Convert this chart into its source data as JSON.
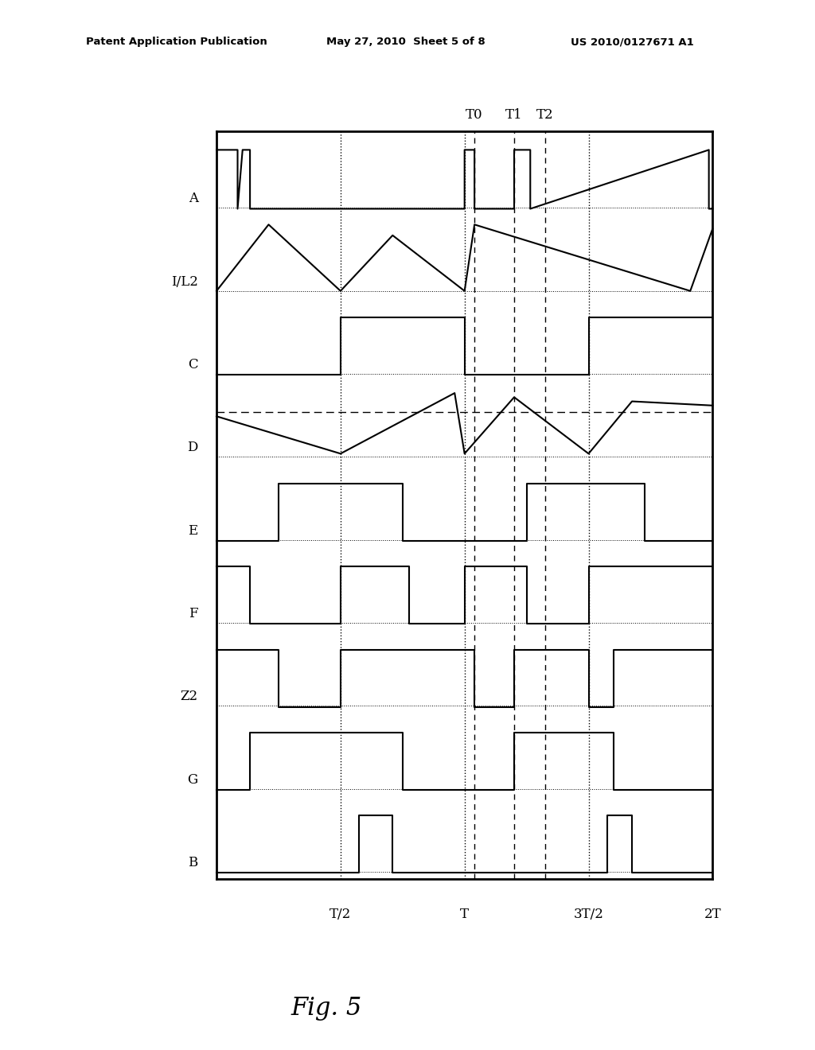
{
  "header_left": "Patent Application Publication",
  "header_center": "May 27, 2010  Sheet 5 of 8",
  "header_right": "US 2010/0127671 A1",
  "fig_label": "Fig. 5",
  "xlabel_labels": [
    "T/2",
    "T",
    "3T/2",
    "2T"
  ],
  "signal_labels": [
    "A",
    "I/L2",
    "C",
    "D",
    "E",
    "F",
    "Z2",
    "G",
    "B"
  ],
  "background_color": "#ffffff",
  "line_color": "#000000"
}
